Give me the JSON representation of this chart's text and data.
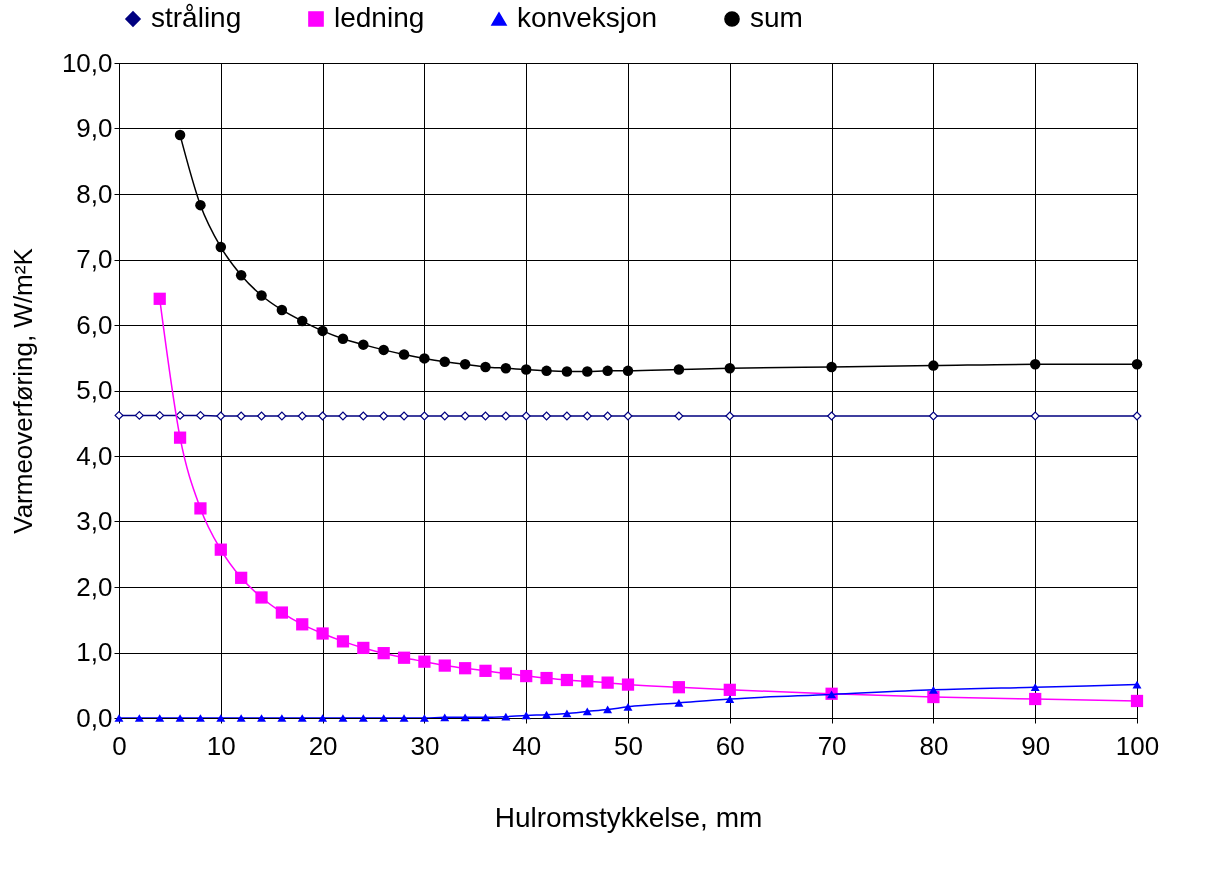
{
  "chart_data": {
    "type": "line",
    "xlabel": "Hulromstykkelse, mm",
    "ylabel": "Varmeoverføring, W/m²K",
    "xlim": [
      0,
      100
    ],
    "xticks": [
      0,
      10,
      20,
      30,
      40,
      50,
      60,
      70,
      80,
      90,
      100
    ],
    "ylim": [
      0,
      10
    ],
    "yticks": [
      {
        "value": 0,
        "label": "0,0"
      },
      {
        "value": 1,
        "label": "1,0"
      },
      {
        "value": 2,
        "label": "2,0"
      },
      {
        "value": 3,
        "label": "3,0"
      },
      {
        "value": 4,
        "label": "4,0"
      },
      {
        "value": 5,
        "label": "5,0"
      },
      {
        "value": 6,
        "label": "6,0"
      },
      {
        "value": 7,
        "label": "7,0"
      },
      {
        "value": 8,
        "label": "8,0"
      },
      {
        "value": 9,
        "label": "9,0"
      },
      {
        "value": 10,
        "label": "10,0"
      }
    ],
    "grid": true,
    "legend": "top",
    "line_style": "solid",
    "series": [
      {
        "name": "stråling",
        "color": "#000080",
        "marker": "diamond",
        "x": [
          0,
          2,
          4,
          6,
          8,
          10,
          12,
          14,
          16,
          18,
          20,
          22,
          24,
          26,
          28,
          30,
          32,
          34,
          36,
          38,
          40,
          42,
          44,
          46,
          48,
          50,
          55,
          60,
          70,
          80,
          90,
          100
        ],
        "values": [
          4.62,
          4.62,
          4.62,
          4.62,
          4.62,
          4.61,
          4.61,
          4.61,
          4.61,
          4.61,
          4.61,
          4.61,
          4.61,
          4.61,
          4.61,
          4.61,
          4.61,
          4.61,
          4.61,
          4.61,
          4.61,
          4.61,
          4.61,
          4.61,
          4.61,
          4.61,
          4.61,
          4.61,
          4.61,
          4.61,
          4.61,
          4.61
        ]
      },
      {
        "name": "ledning",
        "color": "#ff00ff",
        "marker": "square",
        "x": [
          4,
          6,
          8,
          10,
          12,
          14,
          16,
          18,
          20,
          22,
          24,
          26,
          28,
          30,
          32,
          34,
          36,
          38,
          40,
          42,
          44,
          46,
          48,
          50,
          55,
          60,
          70,
          80,
          90,
          100
        ],
        "values": [
          6.4,
          4.28,
          3.2,
          2.57,
          2.14,
          1.84,
          1.61,
          1.43,
          1.29,
          1.17,
          1.07,
          0.99,
          0.92,
          0.86,
          0.8,
          0.76,
          0.72,
          0.68,
          0.64,
          0.61,
          0.58,
          0.56,
          0.54,
          0.51,
          0.47,
          0.43,
          0.37,
          0.32,
          0.29,
          0.26
        ]
      },
      {
        "name": "konveksjon",
        "color": "#0000ff",
        "marker": "triangle",
        "x": [
          0,
          2,
          4,
          6,
          8,
          10,
          12,
          14,
          16,
          18,
          20,
          22,
          24,
          26,
          28,
          30,
          32,
          34,
          36,
          38,
          40,
          42,
          44,
          46,
          48,
          50,
          55,
          60,
          70,
          80,
          90,
          100
        ],
        "values": [
          0,
          0,
          0,
          0,
          0,
          0,
          0,
          0,
          0,
          0,
          0,
          0,
          0,
          0,
          0,
          0,
          0.01,
          0.01,
          0.01,
          0.02,
          0.04,
          0.05,
          0.07,
          0.1,
          0.13,
          0.17,
          0.23,
          0.29,
          0.36,
          0.43,
          0.47,
          0.51
        ]
      },
      {
        "name": "sum",
        "color": "#000000",
        "marker": "circle",
        "x": [
          6,
          8,
          10,
          12,
          14,
          16,
          18,
          20,
          22,
          24,
          26,
          28,
          30,
          32,
          34,
          36,
          38,
          40,
          42,
          44,
          46,
          48,
          50,
          55,
          60,
          70,
          80,
          90,
          100
        ],
        "values": [
          8.9,
          7.83,
          7.19,
          6.76,
          6.45,
          6.23,
          6.06,
          5.91,
          5.79,
          5.7,
          5.62,
          5.55,
          5.49,
          5.44,
          5.4,
          5.36,
          5.34,
          5.32,
          5.3,
          5.29,
          5.29,
          5.3,
          5.3,
          5.32,
          5.34,
          5.36,
          5.38,
          5.4,
          5.4
        ]
      }
    ]
  }
}
